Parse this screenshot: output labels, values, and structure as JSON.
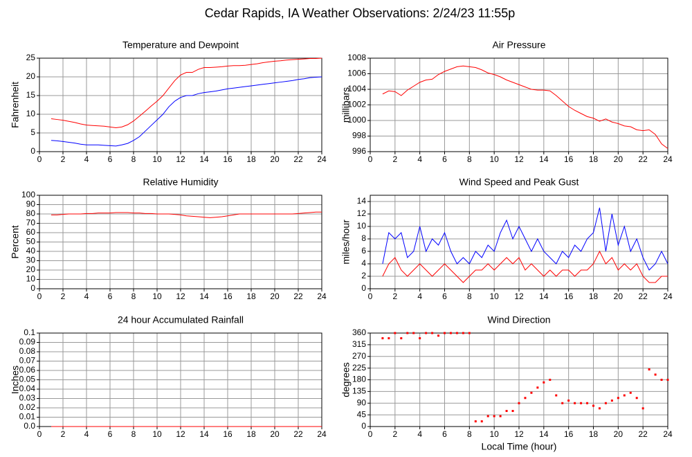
{
  "title": "Cedar Rapids, IA Weather Observations: 2/24/23 11:55p",
  "chart_data": [
    {
      "type": "line",
      "title": "Temperature and Dewpoint",
      "ylabel": "Fahrenheit",
      "xlim": [
        0,
        24
      ],
      "xticks": [
        0,
        2,
        4,
        6,
        8,
        10,
        12,
        14,
        16,
        18,
        20,
        22,
        24
      ],
      "ylim": [
        0,
        25
      ],
      "yticks": [
        0,
        5,
        10,
        15,
        20,
        25
      ],
      "grid": true,
      "x": [
        1,
        1.5,
        2,
        2.5,
        3,
        3.5,
        4,
        4.5,
        5,
        5.5,
        6,
        6.5,
        7,
        7.5,
        8,
        8.5,
        9,
        9.5,
        10,
        10.5,
        11,
        11.5,
        12,
        12.5,
        13,
        13.5,
        14,
        14.5,
        15,
        15.5,
        16,
        16.5,
        17,
        17.5,
        18,
        18.5,
        19,
        19.5,
        20,
        20.5,
        21,
        21.5,
        22,
        22.5,
        23,
        23.5,
        24
      ],
      "series": [
        {
          "color": "#ff0000",
          "values": [
            8.8,
            8.6,
            8.4,
            8.1,
            7.8,
            7.4,
            7.1,
            7.0,
            6.9,
            6.8,
            6.6,
            6.4,
            6.6,
            7.2,
            8.2,
            9.5,
            10.8,
            12.2,
            13.5,
            15,
            17,
            19,
            20.5,
            21.2,
            21.2,
            22,
            22.5,
            22.5,
            22.6,
            22.7,
            22.9,
            23,
            23,
            23.1,
            23.3,
            23.5,
            23.8,
            24,
            24.2,
            24.3,
            24.5,
            24.6,
            24.7,
            24.8,
            24.9,
            24.9,
            25
          ]
        },
        {
          "color": "#0000ff",
          "values": [
            3,
            2.9,
            2.7,
            2.5,
            2.3,
            2,
            1.8,
            1.8,
            1.8,
            1.7,
            1.6,
            1.5,
            1.8,
            2.2,
            3,
            4,
            5.5,
            7,
            8.5,
            10,
            12,
            13.5,
            14.5,
            15,
            15,
            15.5,
            15.8,
            16,
            16.2,
            16.5,
            16.8,
            17,
            17.2,
            17.4,
            17.6,
            17.8,
            18,
            18.2,
            18.4,
            18.6,
            18.8,
            19,
            19.3,
            19.5,
            19.8,
            19.9,
            20
          ]
        }
      ]
    },
    {
      "type": "line",
      "title": "Air Pressure",
      "ylabel": "millibars",
      "xlim": [
        0,
        24
      ],
      "xticks": [
        0,
        2,
        4,
        6,
        8,
        10,
        12,
        14,
        16,
        18,
        20,
        22,
        24
      ],
      "ylim": [
        996,
        1008
      ],
      "yticks": [
        996,
        998,
        1000,
        1002,
        1004,
        1006,
        1008
      ],
      "grid": true,
      "x": [
        1,
        1.5,
        2,
        2.5,
        3,
        3.5,
        4,
        4.5,
        5,
        5.5,
        6,
        6.5,
        7,
        7.5,
        8,
        8.5,
        9,
        9.5,
        10,
        10.5,
        11,
        11.5,
        12,
        12.5,
        13,
        13.5,
        14,
        14.5,
        15,
        15.5,
        16,
        16.5,
        17,
        17.5,
        18,
        18.5,
        19,
        19.5,
        20,
        20.5,
        21,
        21.5,
        22,
        22.5,
        23,
        23.5,
        24
      ],
      "series": [
        {
          "color": "#ff0000",
          "values": [
            1003.4,
            1003.8,
            1003.7,
            1003.2,
            1003.9,
            1004.4,
            1004.9,
            1005.2,
            1005.3,
            1005.9,
            1006.3,
            1006.6,
            1006.9,
            1007,
            1006.9,
            1006.8,
            1006.5,
            1006.1,
            1005.9,
            1005.6,
            1005.2,
            1004.9,
            1004.6,
            1004.3,
            1004,
            1003.9,
            1003.9,
            1003.8,
            1003.2,
            1002.5,
            1001.8,
            1001.3,
            1000.9,
            1000.5,
            1000.3,
            999.9,
            1000.2,
            999.8,
            999.6,
            999.3,
            999.2,
            998.8,
            998.7,
            998.8,
            998.2,
            997,
            996.4
          ]
        }
      ]
    },
    {
      "type": "line",
      "title": "Relative Humidity",
      "ylabel": "Percent",
      "xlim": [
        0,
        24
      ],
      "xticks": [
        0,
        2,
        4,
        6,
        8,
        10,
        12,
        14,
        16,
        18,
        20,
        22,
        24
      ],
      "ylim": [
        0,
        100
      ],
      "yticks": [
        0,
        10,
        20,
        30,
        40,
        50,
        60,
        70,
        80,
        90,
        100
      ],
      "grid": true,
      "x": [
        1,
        1.5,
        2,
        2.5,
        3,
        3.5,
        4,
        4.5,
        5,
        5.5,
        6,
        6.5,
        7,
        7.5,
        8,
        8.5,
        9,
        9.5,
        10,
        10.5,
        11,
        11.5,
        12,
        12.5,
        13,
        13.5,
        14,
        14.5,
        15,
        15.5,
        16,
        16.5,
        17,
        17.5,
        18,
        18.5,
        19,
        19.5,
        20,
        20.5,
        21,
        21.5,
        22,
        22.5,
        23,
        23.5,
        24
      ],
      "series": [
        {
          "color": "#ff0000",
          "values": [
            79,
            79,
            79.5,
            80,
            80,
            80,
            80.5,
            80.5,
            81,
            81,
            81,
            81.5,
            81.5,
            81.5,
            81,
            81,
            80.5,
            80.5,
            80,
            80,
            80,
            79.5,
            79,
            78,
            77.5,
            77,
            76.5,
            76,
            76.5,
            77,
            78,
            79,
            80,
            80,
            80,
            80,
            80,
            80,
            80,
            80,
            80,
            80,
            80.5,
            81,
            81.5,
            82,
            82
          ]
        }
      ]
    },
    {
      "type": "line",
      "title": "Wind Speed and Peak Gust",
      "ylabel": "miles/hour",
      "xlim": [
        0,
        24
      ],
      "xticks": [
        0,
        2,
        4,
        6,
        8,
        10,
        12,
        14,
        16,
        18,
        20,
        22,
        24
      ],
      "ylim": [
        0,
        15
      ],
      "yticks": [
        0,
        2,
        4,
        6,
        8,
        10,
        12,
        14
      ],
      "grid": true,
      "x": [
        1,
        1.5,
        2,
        2.5,
        3,
        3.5,
        4,
        4.5,
        5,
        5.5,
        6,
        6.5,
        7,
        7.5,
        8,
        8.5,
        9,
        9.5,
        10,
        10.5,
        11,
        11.5,
        12,
        12.5,
        13,
        13.5,
        14,
        14.5,
        15,
        15.5,
        16,
        16.5,
        17,
        17.5,
        18,
        18.5,
        19,
        19.5,
        20,
        20.5,
        21,
        21.5,
        22,
        22.5,
        23,
        23.5,
        24
      ],
      "series": [
        {
          "color": "#0000ff",
          "values": [
            4,
            9,
            8,
            9,
            5,
            6,
            10,
            6,
            8,
            7,
            9,
            6,
            4,
            5,
            4,
            6,
            5,
            7,
            6,
            9,
            11,
            8,
            10,
            8,
            6,
            8,
            6,
            5,
            4,
            6,
            5,
            7,
            6,
            8,
            9,
            13,
            6,
            12,
            7,
            10,
            6,
            8,
            5,
            3,
            4,
            6,
            4
          ]
        },
        {
          "color": "#ff0000",
          "values": [
            2,
            4,
            5,
            3,
            2,
            3,
            4,
            3,
            2,
            3,
            4,
            3,
            2,
            1,
            2,
            3,
            3,
            4,
            3,
            4,
            5,
            4,
            5,
            3,
            4,
            3,
            2,
            3,
            2,
            3,
            3,
            2,
            3,
            3,
            4,
            6,
            4,
            5,
            3,
            4,
            3,
            4,
            2,
            1,
            1,
            2,
            2
          ]
        }
      ]
    },
    {
      "type": "line",
      "title": "24 hour Accumulated Rainfall",
      "ylabel": "Inches",
      "xlim": [
        0,
        24
      ],
      "xticks": [
        0,
        2,
        4,
        6,
        8,
        10,
        12,
        14,
        16,
        18,
        20,
        22,
        24
      ],
      "ylim": [
        0,
        0.1
      ],
      "yticks": [
        {
          "value": 0,
          "label": "0.0"
        },
        0.01,
        0.02,
        0.03,
        0.04,
        0.05,
        0.06,
        0.07,
        0.08,
        0.09,
        0.1
      ],
      "grid": true,
      "x": [
        1,
        24
      ],
      "series": [
        {
          "color": "#ff0000",
          "values": [
            0,
            0
          ]
        }
      ]
    },
    {
      "type": "scatter",
      "title": "Wind Direction",
      "ylabel": "degrees",
      "xlabel": "Local Time (hour)",
      "xlim": [
        0,
        24
      ],
      "xticks": [
        0,
        2,
        4,
        6,
        8,
        10,
        12,
        14,
        16,
        18,
        20,
        22,
        24
      ],
      "ylim": [
        0,
        360
      ],
      "yticks": [
        0,
        45,
        90,
        135,
        180,
        225,
        270,
        315,
        360
      ],
      "grid": true,
      "x": [
        1,
        1.5,
        2,
        2.5,
        3,
        3.5,
        4,
        4.5,
        5,
        5.5,
        6,
        6.5,
        7,
        7.5,
        8,
        8.5,
        9,
        9.5,
        10,
        10.5,
        11,
        11.5,
        12,
        12.5,
        13,
        13.5,
        14,
        14.5,
        15,
        15.5,
        16,
        16.5,
        17,
        17.5,
        18,
        18.5,
        19,
        19.5,
        20,
        20.5,
        21,
        21.5,
        22,
        22.5,
        23,
        23.5,
        24
      ],
      "series": [
        {
          "color": "#ff0000",
          "values": [
            340,
            340,
            360,
            340,
            360,
            360,
            340,
            360,
            360,
            350,
            360,
            360,
            360,
            360,
            360,
            20,
            20,
            40,
            40,
            40,
            60,
            60,
            90,
            110,
            130,
            150,
            170,
            180,
            120,
            90,
            100,
            90,
            90,
            90,
            80,
            70,
            90,
            100,
            110,
            120,
            130,
            110,
            70,
            220,
            200,
            180,
            180
          ]
        }
      ]
    }
  ]
}
